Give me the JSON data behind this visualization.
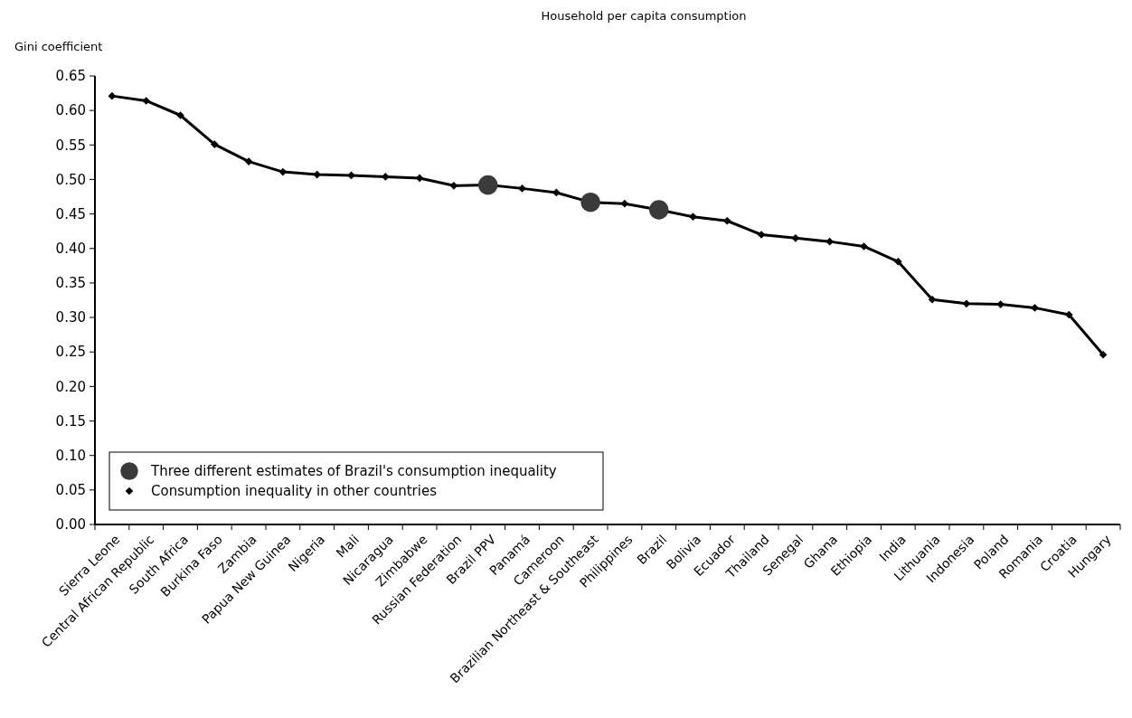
{
  "chart_data": {
    "type": "line",
    "title": "Household per capita consumption",
    "ylabel": "Gini coefficient",
    "categories": [
      "Sierra Leone",
      "Central African Republic",
      "South Africa",
      "Burkina Faso",
      "Zambia",
      "Papua New Guinea",
      "Nigeria",
      "Mali",
      "Nicaragua",
      "Zimbabwe",
      "Russian Federation",
      "Brazil PPV",
      "Panamá",
      "Cameroon",
      "Brazilian Northeast & Southeast",
      "Philippines",
      "Brazil",
      "Bolivia",
      "Ecuador",
      "Thailand",
      "Senegal",
      "Ghana",
      "Ethiopia",
      "India",
      "Lithuania",
      "Indonesia",
      "Poland",
      "Romania",
      "Croatia",
      "Hungary"
    ],
    "series": [
      {
        "name": "Consumption inequality in other countries",
        "color": "#000000",
        "marker": "diamond",
        "values": [
          0.621,
          0.614,
          0.593,
          0.551,
          0.526,
          0.511,
          0.507,
          0.506,
          0.504,
          0.502,
          0.491,
          0.492,
          0.487,
          0.481,
          0.467,
          0.465,
          0.456,
          0.446,
          0.44,
          0.42,
          0.415,
          0.41,
          0.403,
          0.381,
          0.326,
          0.32,
          0.319,
          0.314,
          0.304,
          0.246
        ]
      },
      {
        "name": "Three different estimates of Brazil's consumption inequality",
        "type": "scatter",
        "color": "#3a3a3a",
        "marker": "circle",
        "x": [
          "Brazil PPV",
          "Brazilian Northeast & Southeast",
          "Brazil"
        ],
        "values": [
          0.492,
          0.467,
          0.456
        ]
      }
    ],
    "ylim": [
      0,
      0.65
    ],
    "yticks": [
      {
        "value": 0,
        "label": "0.00"
      },
      {
        "value": 0.05,
        "label": "0.05"
      },
      {
        "value": 0.1,
        "label": "0.10"
      },
      {
        "value": 0.15,
        "label": "0.15"
      },
      {
        "value": 0.2,
        "label": "0.20"
      },
      {
        "value": 0.25,
        "label": "0.25"
      },
      {
        "value": 0.3,
        "label": "0.30"
      },
      {
        "value": 0.35,
        "label": "0.35"
      },
      {
        "value": 0.4,
        "label": "0.40"
      },
      {
        "value": 0.45,
        "label": "0.45"
      },
      {
        "value": 0.5,
        "label": "0.50"
      },
      {
        "value": 0.55,
        "label": "0.55"
      },
      {
        "value": 0.6,
        "label": "0.60"
      },
      {
        "value": 0.65,
        "label": "0.65"
      }
    ],
    "grid": false,
    "legend": "bottom left"
  }
}
